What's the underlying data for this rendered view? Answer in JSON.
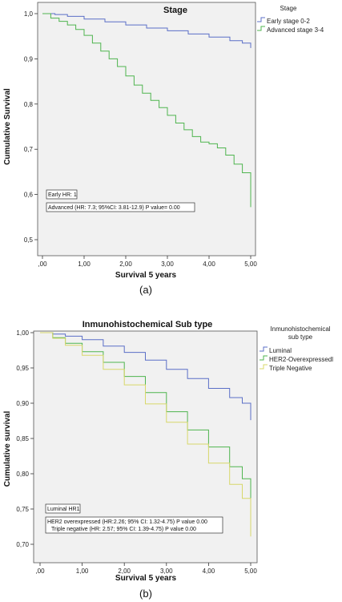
{
  "chart_data": [
    {
      "type": "line",
      "title": "Stage",
      "xlabel": "Survival 5 years",
      "ylabel": "Cumulative Survival",
      "xlim": [
        0,
        5
      ],
      "ylim": [
        0.5,
        1.0
      ],
      "x_ticks": [
        ",00",
        "1,00",
        "2,00",
        "3,00",
        "4,00",
        "5,00"
      ],
      "x_tick_values": [
        0,
        1,
        2,
        3,
        4,
        5
      ],
      "y_ticks": [
        "0,5",
        "0,6",
        "0,7",
        "0,8",
        "0,9",
        "1,0"
      ],
      "y_tick_values": [
        0.5,
        0.6,
        0.7,
        0.8,
        0.9,
        1.0
      ],
      "grid": false,
      "legend_title": "Stage",
      "legend_position": "right-outside-top",
      "series": [
        {
          "name": "Early stage 0-2",
          "color": "#5b6fc7",
          "x": [
            0,
            0.3,
            0.6,
            1.0,
            1.5,
            2.0,
            2.5,
            3.0,
            3.5,
            4.0,
            4.5,
            4.8,
            5.0,
            5.0
          ],
          "y": [
            1.0,
            0.998,
            0.994,
            0.988,
            0.982,
            0.975,
            0.968,
            0.962,
            0.955,
            0.948,
            0.94,
            0.935,
            0.932,
            0.924
          ]
        },
        {
          "name": "Advanced stage 3-4",
          "color": "#4fb54f",
          "x": [
            0,
            0.2,
            0.4,
            0.6,
            0.8,
            1.0,
            1.2,
            1.4,
            1.6,
            1.8,
            2.0,
            2.2,
            2.4,
            2.6,
            2.8,
            3.0,
            3.2,
            3.4,
            3.6,
            3.8,
            4.0,
            4.2,
            4.4,
            4.6,
            4.8,
            5.0,
            5.0
          ],
          "y": [
            1.0,
            0.99,
            0.983,
            0.975,
            0.965,
            0.952,
            0.935,
            0.917,
            0.9,
            0.883,
            0.862,
            0.842,
            0.824,
            0.808,
            0.792,
            0.775,
            0.758,
            0.743,
            0.728,
            0.716,
            0.712,
            0.703,
            0.687,
            0.667,
            0.648,
            0.637,
            0.572
          ]
        }
      ],
      "annotations": [
        "Early HR: 1",
        "Advanced (HR: 7.3; 95%CI: 3.81-12.9) P value= 0.00"
      ],
      "caption": "(a)"
    },
    {
      "type": "line",
      "title": "Inmunohistochemical  Sub type",
      "xlabel": "Survival 5 years",
      "ylabel": "Cumulative survival",
      "xlim": [
        0,
        5
      ],
      "ylim": [
        0.7,
        1.0
      ],
      "x_ticks": [
        ",00",
        "1,00",
        "2,00",
        "3,00",
        "4,00",
        "5,00"
      ],
      "x_tick_values": [
        0,
        1,
        2,
        3,
        4,
        5
      ],
      "y_ticks": [
        "0,70",
        "0,75",
        "0,80",
        "0,85",
        "0,90",
        "0,95",
        "1,00"
      ],
      "y_tick_values": [
        0.7,
        0.75,
        0.8,
        0.85,
        0.9,
        0.95,
        1.0
      ],
      "grid": false,
      "legend_title": "Inmunohistochemical\nsub type",
      "legend_position": "right-outside-top",
      "series": [
        {
          "name": "Luminal",
          "color": "#5b6fc7",
          "x": [
            0,
            0.3,
            0.6,
            1.0,
            1.5,
            2.0,
            2.5,
            3.0,
            3.5,
            4.0,
            4.5,
            4.8,
            5.0,
            5.0
          ],
          "y": [
            1.0,
            0.998,
            0.995,
            0.99,
            0.981,
            0.972,
            0.961,
            0.948,
            0.935,
            0.921,
            0.908,
            0.9,
            0.895,
            0.876
          ]
        },
        {
          "name": "HER2-Overexpressedl",
          "color": "#4fb54f",
          "x": [
            0,
            0.3,
            0.6,
            1.0,
            1.5,
            2.0,
            2.5,
            3.0,
            3.5,
            4.0,
            4.5,
            4.8,
            5.0,
            5.0
          ],
          "y": [
            1.0,
            0.993,
            0.985,
            0.973,
            0.958,
            0.938,
            0.915,
            0.888,
            0.862,
            0.838,
            0.81,
            0.793,
            0.781,
            0.755
          ]
        },
        {
          "name": "Triple Negative",
          "color": "#d8d86a",
          "x": [
            0,
            0.3,
            0.6,
            1.0,
            1.5,
            2.0,
            2.5,
            3.0,
            3.5,
            4.0,
            4.5,
            4.8,
            5.0,
            5.0
          ],
          "y": [
            1.0,
            0.992,
            0.982,
            0.968,
            0.948,
            0.926,
            0.899,
            0.873,
            0.842,
            0.815,
            0.785,
            0.765,
            0.752,
            0.711
          ]
        }
      ],
      "annotations": [
        "Luminal HR1",
        "HER2 overexpressed (HR:2.26; 95% CI: 1.32-4.75) P value 0.00",
        "Triple negative (HR: 2.57; 95% CI: 1.39-4.75) P value 0.00"
      ],
      "caption": "(b)"
    }
  ]
}
